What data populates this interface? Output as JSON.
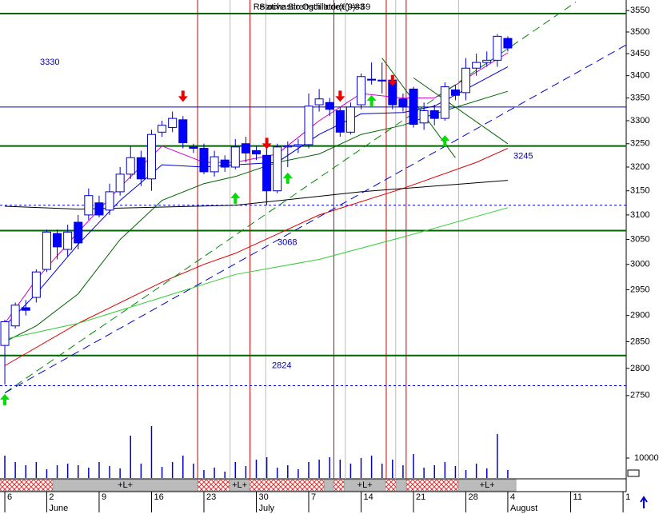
{
  "chart_data": {
    "type": "candlestick",
    "title_overlay": [
      "Relative Strength Index(9)=69",
      "Stochastic Oscillator(9)=83"
    ],
    "log_scale": true,
    "x": [
      0,
      1,
      2,
      3,
      4,
      5,
      6,
      7,
      8,
      9,
      10,
      11,
      12,
      13,
      14,
      15,
      16,
      17,
      18,
      19,
      20,
      21,
      22,
      23,
      24,
      25,
      26,
      27,
      28,
      29,
      30,
      31,
      32,
      33,
      34,
      35,
      36,
      37,
      38,
      39,
      40,
      41,
      42,
      43,
      44,
      45,
      46,
      47,
      48
    ],
    "open": [
      2843,
      2880,
      2915,
      2935,
      2990,
      3062,
      3030,
      3085,
      3100,
      3125,
      3110,
      3148,
      3185,
      3220,
      3175,
      3275,
      3285,
      3302,
      3243,
      3240,
      3190,
      3215,
      3200,
      3250,
      3235,
      3225,
      3150,
      3243,
      3245,
      3248,
      3335,
      3340,
      3322,
      3275,
      3335,
      3392,
      3390,
      3390,
      3348,
      3370,
      3295,
      3322,
      3305,
      3368,
      3362,
      3417,
      3430,
      3435,
      3485
    ],
    "high": [
      2892,
      2925,
      2930,
      2990,
      3070,
      3070,
      3080,
      3100,
      3155,
      3140,
      3165,
      3200,
      3245,
      3235,
      3280,
      3300,
      3320,
      3310,
      3250,
      3250,
      3235,
      3225,
      3260,
      3265,
      3245,
      3240,
      3250,
      3255,
      3260,
      3360,
      3370,
      3350,
      3330,
      3340,
      3405,
      3430,
      3430,
      3400,
      3360,
      3375,
      3340,
      3335,
      3385,
      3380,
      3440,
      3450,
      3455,
      3495,
      3490
    ],
    "low": [
      2770,
      2875,
      2900,
      2925,
      2985,
      3010,
      3015,
      3030,
      3090,
      3095,
      3100,
      3140,
      3175,
      3160,
      3150,
      3265,
      3275,
      3240,
      3230,
      3185,
      3180,
      3190,
      3195,
      3210,
      3215,
      3120,
      3145,
      3200,
      3230,
      3240,
      3320,
      3310,
      3265,
      3270,
      3325,
      3380,
      3360,
      3325,
      3320,
      3285,
      3280,
      3290,
      3300,
      3345,
      3345,
      3400,
      3420,
      3420,
      3455
    ],
    "close": [
      2888,
      2920,
      2910,
      2985,
      3065,
      3035,
      3065,
      3043,
      3140,
      3100,
      3148,
      3185,
      3220,
      3175,
      3270,
      3290,
      3305,
      3252,
      3240,
      3190,
      3222,
      3200,
      3243,
      3230,
      3228,
      3150,
      3243,
      3245,
      3248,
      3332,
      3348,
      3325,
      3275,
      3330,
      3398,
      3390,
      3388,
      3335,
      3330,
      3292,
      3322,
      3305,
      3375,
      3356,
      3417,
      3430,
      3435,
      3490,
      3463
    ],
    "up_color": "#ffffff",
    "down_color": "#0000ff",
    "xlim": [
      -0.46,
      59.3
    ],
    "xticks": [
      {
        "value": 0,
        "label": "6"
      },
      {
        "value": 4,
        "label": "2"
      },
      {
        "value": 9,
        "label": "9"
      },
      {
        "value": 14,
        "label": "16"
      },
      {
        "value": 19,
        "label": "23"
      },
      {
        "value": 24,
        "label": "30"
      },
      {
        "value": 29,
        "label": "7"
      },
      {
        "value": 34,
        "label": "14"
      },
      {
        "value": 39,
        "label": "21"
      },
      {
        "value": 44,
        "label": "28"
      },
      {
        "value": 48,
        "label": "4"
      },
      {
        "value": 54,
        "label": "11"
      },
      {
        "value": 59,
        "label": "1"
      }
    ],
    "month_labels": [
      {
        "value": 4,
        "label": "June"
      },
      {
        "value": 24,
        "label": "July"
      },
      {
        "value": 48,
        "label": "August"
      }
    ],
    "ylim": [
      2715,
      3575
    ],
    "yticks": [
      2750,
      2800,
      2850,
      2900,
      2950,
      3000,
      3050,
      3100,
      3150,
      3200,
      3250,
      3300,
      3350,
      3400,
      3450,
      3500,
      3550
    ],
    "lines": [
      {
        "color": "#cc00cc",
        "dash": false,
        "x": [
          0,
          3,
          7,
          11,
          15,
          19,
          22,
          26,
          30,
          34,
          38,
          41,
          48
        ],
        "values": [
          2885,
          2970,
          3065,
          3158,
          3245,
          3210,
          3210,
          3228,
          3300,
          3360,
          3350,
          3350,
          3452
        ]
      },
      {
        "color": "#0000cc",
        "dash": false,
        "x": [
          0,
          3,
          7,
          11,
          15,
          19,
          22,
          26,
          30,
          34,
          38,
          41,
          48
        ],
        "values": [
          2880,
          2942,
          3040,
          3130,
          3205,
          3200,
          3205,
          3210,
          3270,
          3315,
          3318,
          3332,
          3420
        ]
      },
      {
        "color": "#006400",
        "dash": false,
        "x": [
          0,
          3,
          7,
          11,
          15,
          19,
          22,
          26,
          30,
          34,
          38,
          41,
          48
        ],
        "values": [
          2850,
          2880,
          2942,
          3050,
          3130,
          3165,
          3180,
          3210,
          3228,
          3270,
          3290,
          3315,
          3365
        ]
      },
      {
        "color": "#dd0000",
        "dash": false,
        "x": [
          0,
          7,
          15,
          19,
          22,
          30,
          38,
          45,
          48
        ],
        "values": [
          2805,
          2885,
          2965,
          3000,
          3022,
          3100,
          3155,
          3210,
          3240
        ]
      },
      {
        "color": "#000000",
        "dash": false,
        "x": [
          0,
          7,
          22,
          34,
          48
        ],
        "values": [
          3118,
          3112,
          3120,
          3148,
          3172
        ]
      },
      {
        "color": "#33cc33",
        "dash": false,
        "x": [
          0,
          7,
          15,
          22,
          30,
          38,
          48
        ],
        "values": [
          2855,
          2885,
          2935,
          2980,
          3010,
          3055,
          3115
        ]
      },
      {
        "color": "#008800",
        "dash": true,
        "x": [
          0,
          54.5
        ],
        "values": [
          2755,
          3570
        ]
      },
      {
        "color": "#0000cc",
        "dash": true,
        "x": [
          0,
          59.3
        ],
        "values": [
          2755,
          3470
        ]
      },
      {
        "color": "#006400",
        "dash": false,
        "x": [
          36,
          43
        ],
        "values": [
          3440,
          3220
        ]
      },
      {
        "color": "#006400",
        "dash": false,
        "x": [
          39,
          48
        ],
        "values": [
          3395,
          3250
        ]
      }
    ],
    "levels": [
      {
        "value": 3543,
        "color": "#006400",
        "dash": false
      },
      {
        "value": 3330,
        "color": "#0000cc",
        "dash": false
      },
      {
        "value": 3245,
        "color": "#006400",
        "dash": false
      },
      {
        "value": 3120,
        "color": "#0000cc",
        "dash": true
      },
      {
        "value": 3068,
        "color": "#006400",
        "dash": false
      },
      {
        "value": 2824,
        "color": "#006400",
        "dash": false
      },
      {
        "value": 2768,
        "color": "#0000cc",
        "dash": true
      }
    ],
    "level_labels": [
      3330,
      3245,
      3068,
      2824
    ],
    "event_lines": [
      {
        "x": 18.4,
        "color": "#cc0000"
      },
      {
        "x": 23.4,
        "color": "#cc0000"
      },
      {
        "x": 31.4,
        "color": "#cc0000"
      },
      {
        "x": 36.4,
        "color": "#cc0000"
      },
      {
        "x": 38.3,
        "color": "#cc0000"
      },
      {
        "x": 21.5,
        "color": "#bbbbbb"
      },
      {
        "x": 24.9,
        "color": "#bbbbbb"
      },
      {
        "x": 32.5,
        "color": "#bbbbbb"
      },
      {
        "x": 37.3,
        "color": "#bbbbbb"
      },
      {
        "x": 43.3,
        "color": "#bbbbbb"
      }
    ],
    "arrows": [
      {
        "x": 17,
        "value": 3345,
        "direction": "down",
        "color": "#ee0000"
      },
      {
        "x": 25,
        "value": 3242,
        "direction": "down",
        "color": "#ee0000"
      },
      {
        "x": 32,
        "value": 3345,
        "direction": "down",
        "color": "#ee0000"
      },
      {
        "x": 37,
        "value": 3380,
        "direction": "down",
        "color": "#ee0000"
      },
      {
        "x": 0,
        "value": 2750,
        "direction": "up",
        "color": "#00dd00"
      },
      {
        "x": 22,
        "value": 3143,
        "direction": "up",
        "color": "#00dd00"
      },
      {
        "x": 27,
        "value": 3185,
        "direction": "up",
        "color": "#00dd00"
      },
      {
        "x": 35,
        "value": 3353,
        "direction": "up",
        "color": "#00dd00"
      },
      {
        "x": 42,
        "value": 3265,
        "direction": "up",
        "color": "#00dd00"
      }
    ],
    "volume": {
      "color": "#0000cc",
      "values": [
        11200,
        8000,
        6400,
        8000,
        4400,
        6400,
        7200,
        6400,
        5200,
        8000,
        6000,
        4800,
        21200,
        7200,
        26000,
        5600,
        8000,
        11200,
        7200,
        4000,
        5200,
        3200,
        8000,
        6000,
        9200,
        10400,
        5200,
        6400,
        4400,
        8000,
        9200,
        10400,
        9200,
        7200,
        10000,
        11200,
        7200,
        9200,
        6400,
        12000,
        5200,
        6400,
        8000,
        6000,
        4000,
        7200,
        4800,
        22000,
        4000
      ],
      "vlim": [
        0,
        28000
      ],
      "vticks": [
        10000
      ]
    },
    "bands": [
      {
        "from": -0.46,
        "to": 4.58,
        "color": "red"
      },
      {
        "from": 4.58,
        "to": 18.4,
        "color": "gray",
        "label": "+L+"
      },
      {
        "from": 18.4,
        "to": 21.45,
        "color": "red"
      },
      {
        "from": 21.45,
        "to": 23.36,
        "color": "gray",
        "label": "+L+"
      },
      {
        "from": 23.36,
        "to": 30.46,
        "color": "red"
      },
      {
        "from": 30.46,
        "to": 31.37,
        "color": "gray"
      },
      {
        "from": 31.37,
        "to": 32.37,
        "color": "red"
      },
      {
        "from": 32.37,
        "to": 36.34,
        "color": "gray",
        "label": "+L+"
      },
      {
        "from": 36.34,
        "to": 37.33,
        "color": "red"
      },
      {
        "from": 37.33,
        "to": 38.32,
        "color": "gray"
      },
      {
        "from": 38.32,
        "to": 43.28,
        "color": "red"
      },
      {
        "from": 43.28,
        "to": 48.78,
        "color": "gray",
        "label": "+L+"
      }
    ]
  }
}
